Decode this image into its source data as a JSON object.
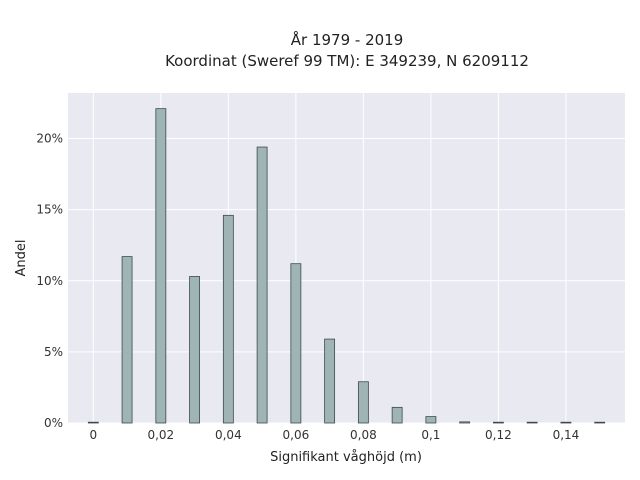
{
  "chart_data": {
    "type": "bar",
    "title_line1": "År 1979 - 2019",
    "title_line2": "Koordinat (Sweref 99 TM): E 349239, N 6209112",
    "xlabel": "Signifikant våghöjd (m)",
    "ylabel": "Andel",
    "x": [
      0,
      0.01,
      0.02,
      0.03,
      0.04,
      0.05,
      0.06,
      0.07,
      0.08,
      0.09,
      0.1,
      0.11,
      0.12,
      0.13,
      0.14,
      0.15
    ],
    "values": [
      0.05,
      11.7,
      22.1,
      10.3,
      14.6,
      19.4,
      11.2,
      5.9,
      2.9,
      1.1,
      0.45,
      0.08,
      0.05,
      0.04,
      0.03,
      0.02
    ],
    "xlim": [
      -0.0075,
      0.1575
    ],
    "ylim": [
      0,
      23.2
    ],
    "xticks": [
      0,
      0.02,
      0.04,
      0.06,
      0.08,
      0.1,
      0.12,
      0.14
    ],
    "xtick_labels": [
      "0",
      "0,02",
      "0,04",
      "0,06",
      "0,08",
      "0,1",
      "0,12",
      "0,14"
    ],
    "yticks": [
      0,
      5,
      10,
      15,
      20
    ],
    "ytick_labels": [
      "0%",
      "5%",
      "10%",
      "15%",
      "20%"
    ],
    "grid": true,
    "colors": {
      "plot_background": "#e9e9f1",
      "grid": "#ffffff",
      "bar_fill": "#9fb5b5",
      "bar_stroke": "#3d4a4a"
    }
  }
}
